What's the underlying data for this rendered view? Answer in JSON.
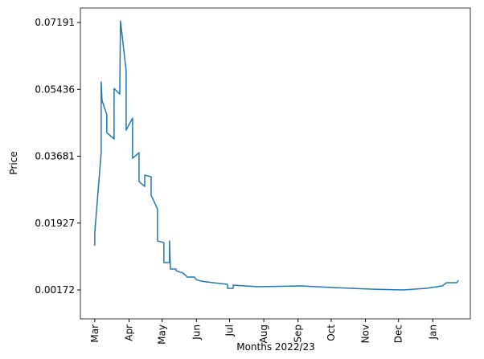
{
  "chart_data": {
    "type": "line",
    "xlabel": "Months 2022/23",
    "ylabel": "Price",
    "x": [
      0,
      0,
      5.8,
      5.8,
      6.6,
      10.9,
      10.9,
      17.5,
      17.5,
      22.6,
      23.3,
      28.4,
      28.4,
      34.2,
      34.2,
      40.1,
      40.1,
      45.2,
      45.2,
      51.0,
      51.0,
      56.8,
      56.8,
      62.6,
      62.6,
      67.7,
      67.7,
      68.5,
      73.6,
      73.6,
      80.1,
      83.8,
      90.3,
      91.8,
      96.1,
      107.1,
      120.2,
      120.2,
      125.3,
      125.3,
      147.1,
      187.2,
      215.6,
      249.9,
      278.3,
      300.2,
      314.7,
      318.4,
      327.8,
      329.2
    ],
    "series": [
      {
        "name": "Price",
        "color": "#1f77b4",
        "values": [
          0.01331,
          0.01668,
          0.03775,
          0.05629,
          0.05144,
          0.0477,
          0.04301,
          0.04133,
          0.0546,
          0.05313,
          0.0723,
          0.05924,
          0.04365,
          0.04681,
          0.03627,
          0.03775,
          0.03016,
          0.0289,
          0.03185,
          0.03143,
          0.02658,
          0.023,
          0.01457,
          0.01415,
          0.00888,
          0.00888,
          0.01457,
          0.0072,
          0.0072,
          0.00678,
          0.00614,
          0.00509,
          0.00509,
          0.00446,
          0.00404,
          0.00362,
          0.0032,
          0.00214,
          0.00214,
          0.00298,
          0.00256,
          0.00277,
          0.00235,
          0.00193,
          0.00172,
          0.00214,
          0.00277,
          0.00362,
          0.00362,
          0.00425
        ]
      }
    ],
    "xlim": [
      -13,
      340
    ],
    "xticks": [
      {
        "value": 0,
        "label": "Mar"
      },
      {
        "value": 31,
        "label": "Apr"
      },
      {
        "value": 61,
        "label": "May"
      },
      {
        "value": 92,
        "label": "Jun"
      },
      {
        "value": 122,
        "label": "Jul"
      },
      {
        "value": 153,
        "label": "Aug"
      },
      {
        "value": 184,
        "label": "Sep"
      },
      {
        "value": 214,
        "label": "Oct"
      },
      {
        "value": 245,
        "label": "Nov"
      },
      {
        "value": 275,
        "label": "Dec"
      },
      {
        "value": 306,
        "label": "Jan"
      }
    ],
    "ylim": [
      -0.00586,
      0.0757
    ],
    "yticks": [
      0.00172,
      0.01927,
      0.03681,
      0.05436,
      0.07191
    ],
    "grid": false
  }
}
